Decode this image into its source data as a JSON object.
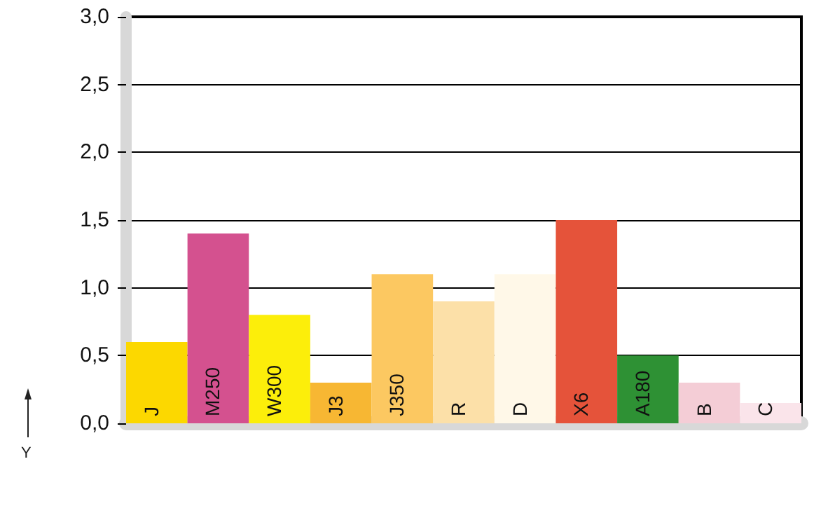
{
  "chart_data": {
    "type": "bar",
    "ylabel": "Y",
    "categories": [
      "J",
      "M250",
      "W300",
      "J3",
      "J350",
      "R",
      "D",
      "X6",
      "A180",
      "B",
      "C"
    ],
    "values": [
      0.6,
      1.4,
      0.8,
      0.3,
      1.1,
      0.9,
      1.1,
      1.5,
      0.5,
      0.3,
      0.15
    ],
    "colors": [
      "#fcd800",
      "#d4518f",
      "#fcee0a",
      "#f7b733",
      "#fcc861",
      "#fce0a8",
      "#fff8e8",
      "#e5533a",
      "#2e9134",
      "#f4cdd6",
      "#fae4ea"
    ],
    "ylim": [
      0,
      3
    ],
    "yticks": [
      {
        "value": 0,
        "label": "0,0"
      },
      {
        "value": 0.5,
        "label": "0,5"
      },
      {
        "value": 1,
        "label": "1,0"
      },
      {
        "value": 1.5,
        "label": "1,5"
      },
      {
        "value": 2,
        "label": "2,0"
      },
      {
        "value": 2.5,
        "label": "2,5"
      },
      {
        "value": 3,
        "label": "3,0"
      }
    ],
    "grid": "y"
  }
}
